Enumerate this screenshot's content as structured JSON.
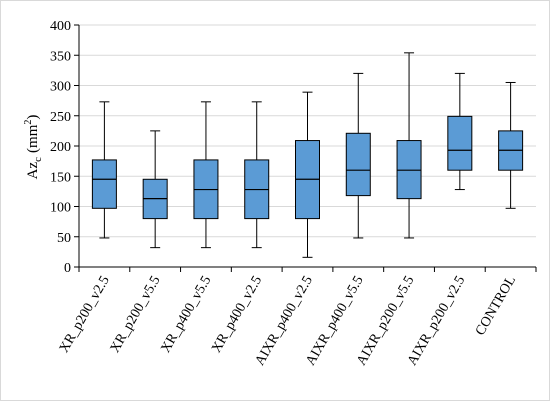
{
  "chart_data": {
    "type": "box",
    "ylabel": "Az",
    "ylabel_subscript": "c",
    "ylabel_unit": "(mm",
    "ylabel_unit_sup": "2",
    "ylabel_unit_close": ")",
    "ylim": [
      0,
      400
    ],
    "yticks": [
      0,
      50,
      100,
      150,
      200,
      250,
      300,
      350,
      400
    ],
    "grid": true,
    "box_color": "#5b9bd5",
    "categories": [
      "XR_p200_v2.5",
      "XR_p200_v5.5",
      "XR_p400_v5.5",
      "XR_p400_v2.5",
      "AIXR_p400_v2.5",
      "AIXR_p400_v5.5",
      "AIXR_p200_v5.5",
      "AIXR_p200_v2.5",
      "CONTROL"
    ],
    "boxes": [
      {
        "min": 48,
        "q1": 97,
        "median": 145,
        "q3": 177,
        "max": 273
      },
      {
        "min": 32,
        "q1": 80,
        "median": 113,
        "q3": 145,
        "max": 225
      },
      {
        "min": 32,
        "q1": 80,
        "median": 128,
        "q3": 177,
        "max": 273
      },
      {
        "min": 32,
        "q1": 80,
        "median": 128,
        "q3": 177,
        "max": 273
      },
      {
        "min": 16,
        "q1": 80,
        "median": 145,
        "q3": 209,
        "max": 289
      },
      {
        "min": 48,
        "q1": 118,
        "median": 160,
        "q3": 221,
        "max": 320
      },
      {
        "min": 48,
        "q1": 113,
        "median": 160,
        "q3": 209,
        "max": 354
      },
      {
        "min": 128,
        "q1": 160,
        "median": 193,
        "q3": 249,
        "max": 320
      },
      {
        "min": 97,
        "q1": 160,
        "median": 193,
        "q3": 225,
        "max": 305
      }
    ]
  }
}
